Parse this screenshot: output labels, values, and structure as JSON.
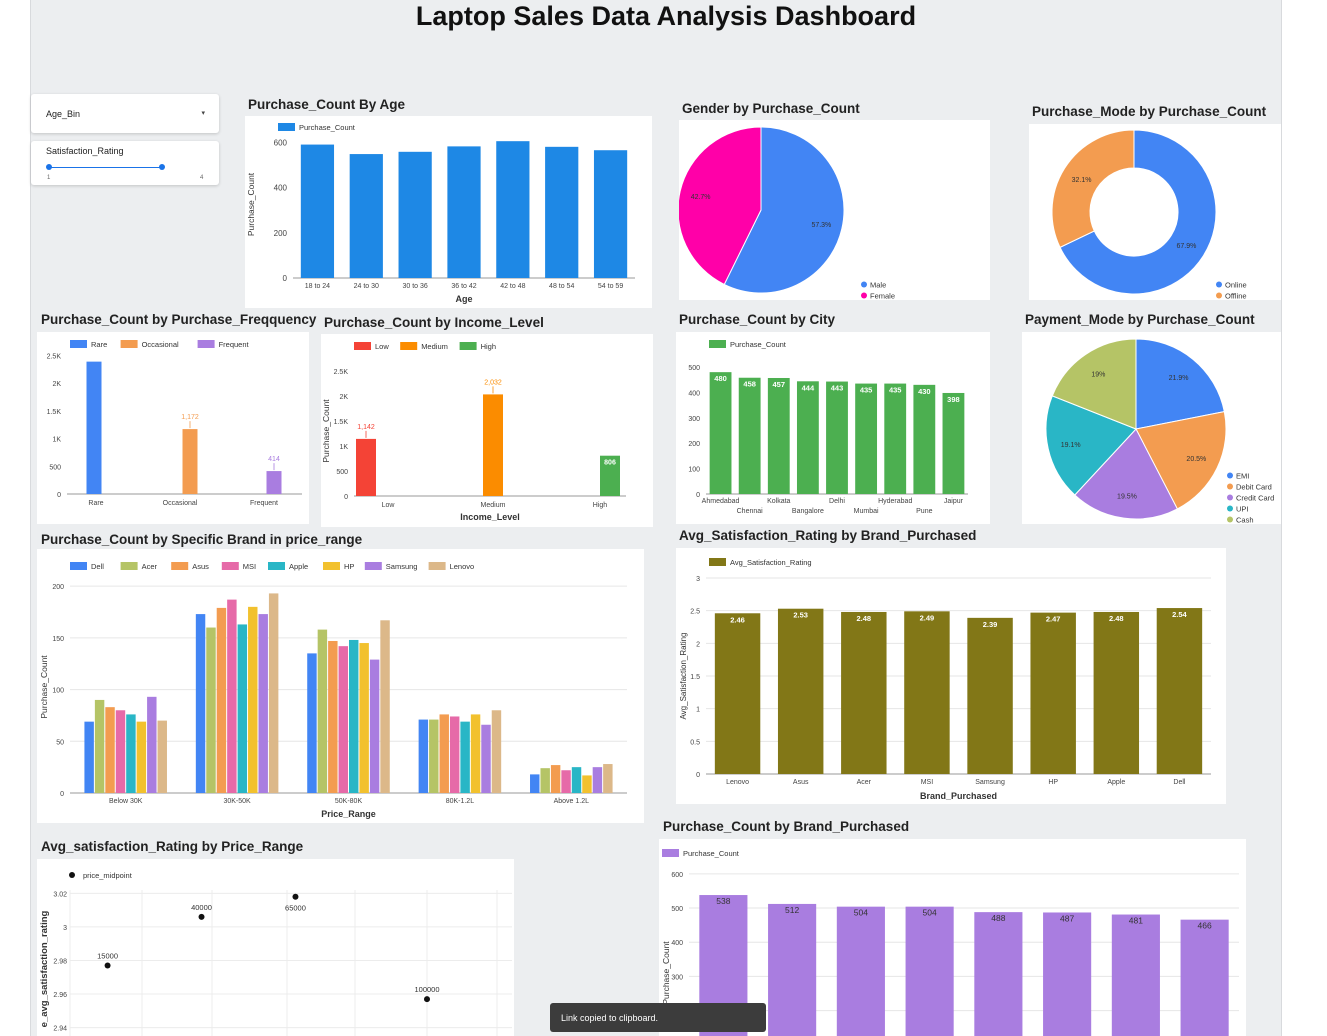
{
  "dashboard_title": "Laptop Sales Data Analysis Dashboard",
  "controls": {
    "age_bin": {
      "label": "Age_Bin"
    },
    "satisfaction": {
      "label": "Satisfaction_Rating",
      "min_label": "1",
      "max_label": "4",
      "range": [
        1,
        4
      ],
      "selected": [
        1,
        3.5
      ]
    }
  },
  "toast": "Link copied to clipboard.",
  "colors": {
    "blue": "#1e88e5",
    "green": "#4caf50",
    "olive": "#827717",
    "purple": "#a97de0",
    "pink": "#ff00a8",
    "orange": "#f39c50"
  },
  "titles": {
    "age": "Purchase_Count By Age",
    "gender": "Gender by Purchase_Count",
    "mode": "Purchase_Mode by Purchase_Count",
    "freq": "Purchase_Count by Purchase_Freqquency",
    "income": "Purchase_Count by Income_Level",
    "city": "Purchase_Count by City",
    "payment": "Payment_Mode by Purchase_Count",
    "brandprice": "Purchase_Count by Specific Brand in price_range",
    "avgsat": "Avg_Satisfaction_Rating by Brand_Purchased",
    "pricerange": "Avg_satisfaction_Rating by Price_Range",
    "brandcount": "Purchase_Count by Brand_Purchased"
  },
  "chart_data": [
    {
      "id": "age",
      "type": "bar",
      "title": "Purchase_Count By Age",
      "categories": [
        "18 to 24",
        "24 to 30",
        "30 to 36",
        "36 to 42",
        "42 to 48",
        "48 to 54",
        "54 to 59"
      ],
      "series": [
        {
          "name": "Purchase_Count",
          "values": [
            590,
            548,
            558,
            582,
            605,
            580,
            565
          ],
          "color": "#1e88e5"
        }
      ],
      "xlabel": "Age",
      "ylabel": "Purchase_Count",
      "ylim": [
        0,
        650
      ],
      "yticks": [
        0,
        200,
        400,
        600
      ],
      "ytick_labels": [
        "0",
        "200",
        "400",
        "600"
      ],
      "legend": "top-left",
      "grid": false
    },
    {
      "id": "gender",
      "type": "pie",
      "title": "Gender by Purchase_Count",
      "labels": [
        "Male",
        "Female"
      ],
      "values": [
        57.3,
        42.7
      ],
      "value_labels": [
        "57.3%",
        "42.7%"
      ],
      "colors": [
        "#4285f4",
        "#ff00a8"
      ],
      "legend": "bottom-right"
    },
    {
      "id": "mode",
      "type": "pie",
      "donut": true,
      "title": "Purchase_Mode by Purchase_Count",
      "labels": [
        "Online",
        "Offline"
      ],
      "values": [
        67.9,
        32.1
      ],
      "value_labels": [
        "67.9%",
        "32.1%"
      ],
      "colors": [
        "#4285f4",
        "#f39c50"
      ],
      "legend": "bottom-right"
    },
    {
      "id": "freq",
      "type": "bar",
      "title": "Purchase_Count by Purchase_Freqquency",
      "categories": [
        "Rare",
        "Occasional",
        "Frequent"
      ],
      "series": [
        {
          "name": "Rare",
          "values": [
            2390,
            null,
            null
          ],
          "color": "#4285f4"
        },
        {
          "name": "Occasional",
          "values": [
            null,
            1172,
            null
          ],
          "color": "#f39c50"
        },
        {
          "name": "Frequent",
          "values": [
            null,
            null,
            414
          ],
          "color": "#a97de0"
        }
      ],
      "data_labels": [
        "",
        "1,172",
        "414"
      ],
      "ylim": [
        0,
        2600
      ],
      "yticks": [
        0,
        500,
        1000,
        1500,
        2000,
        2500
      ],
      "ytick_labels": [
        "0",
        "500",
        "1K",
        "1.5K",
        "2K",
        "2.5K"
      ],
      "legend": "top-left",
      "grid": false
    },
    {
      "id": "income",
      "type": "bar",
      "title": "Purchase_Count by Income_Level",
      "categories": [
        "Low",
        "Medium",
        "High"
      ],
      "series": [
        {
          "name": "Low",
          "values": [
            1142,
            null,
            null
          ],
          "color": "#f44336"
        },
        {
          "name": "Medium",
          "values": [
            null,
            2032,
            null
          ],
          "color": "#fb8c00"
        },
        {
          "name": "High",
          "values": [
            null,
            null,
            806
          ],
          "color": "#4caf50"
        }
      ],
      "data_labels": [
        "1,142",
        "2,032",
        "806"
      ],
      "xlabel": "Income_Level",
      "ylabel": "Purchase_Count",
      "ylim": [
        0,
        2600
      ],
      "yticks": [
        0,
        500,
        1000,
        1500,
        2000,
        2500
      ],
      "ytick_labels": [
        "0",
        "500",
        "1K",
        "1.5K",
        "2K",
        "2.5K"
      ],
      "legend": "top-left",
      "grid": false
    },
    {
      "id": "city",
      "type": "bar",
      "title": "Purchase_Count by City",
      "categories": [
        "Ahmedabad",
        "Chennai",
        "Kolkata",
        "Bangalore",
        "Delhi",
        "Mumbai",
        "Hyderabad",
        "Pune",
        "Jaipur"
      ],
      "series": [
        {
          "name": "Purchase_Count",
          "values": [
            480,
            458,
            457,
            444,
            443,
            435,
            435,
            430,
            398
          ],
          "color": "#4caf50"
        }
      ],
      "ylim": [
        0,
        520
      ],
      "yticks": [
        0,
        100,
        200,
        300,
        400,
        500
      ],
      "ytick_labels": [
        "0",
        "100",
        "200",
        "300",
        "400",
        "500"
      ],
      "legend": "top-left",
      "grid": false
    },
    {
      "id": "payment",
      "type": "pie",
      "title": "Payment_Mode by Purchase_Count",
      "labels": [
        "EMI",
        "Debit Card",
        "Credit Card",
        "UPI",
        "Cash"
      ],
      "values": [
        21.9,
        20.5,
        19.5,
        19.1,
        19
      ],
      "value_labels": [
        "21.9%",
        "20.5%",
        "19.5%",
        "19.1%",
        "19%"
      ],
      "colors": [
        "#4285f4",
        "#f39c50",
        "#a97de0",
        "#29b6c6",
        "#b5c466"
      ],
      "legend": "bottom-right"
    },
    {
      "id": "brandprice",
      "type": "bar",
      "title": "Purchase_Count by Specific Brand in price_range",
      "categories": [
        "Below 30K",
        "30K-50K",
        "50K-80K",
        "80K-1.2L",
        "Above 1.2L"
      ],
      "series": [
        {
          "name": "Dell",
          "values": [
            69,
            173,
            135,
            71,
            18
          ],
          "color": "#4285f4"
        },
        {
          "name": "Acer",
          "values": [
            90,
            160,
            158,
            71,
            24
          ],
          "color": "#b5c466"
        },
        {
          "name": "Asus",
          "values": [
            83,
            179,
            147,
            76,
            27
          ],
          "color": "#f39c50"
        },
        {
          "name": "MSI",
          "values": [
            80,
            187,
            142,
            74,
            22
          ],
          "color": "#e66aa8"
        },
        {
          "name": "Apple",
          "values": [
            76,
            163,
            148,
            69,
            25
          ],
          "color": "#29b6c6"
        },
        {
          "name": "HP",
          "values": [
            69,
            180,
            145,
            76,
            17
          ],
          "color": "#f2c12e"
        },
        {
          "name": "Samsung",
          "values": [
            93,
            173,
            129,
            66,
            25
          ],
          "color": "#a97de0"
        },
        {
          "name": "Lenovo",
          "values": [
            70,
            193,
            167,
            80,
            28
          ],
          "color": "#dcb889"
        }
      ],
      "xlabel": "Price_Range",
      "ylabel": "Purchase_Count",
      "ylim": [
        0,
        205
      ],
      "yticks": [
        0,
        50,
        100,
        150,
        200
      ],
      "ytick_labels": [
        "0",
        "50",
        "100",
        "150",
        "200"
      ],
      "legend": "top-left",
      "grid": true
    },
    {
      "id": "avgsat",
      "type": "bar",
      "title": "Avg_Satisfaction_Rating by Brand_Purchased",
      "categories": [
        "Lenovo",
        "Asus",
        "Acer",
        "MSI",
        "Samsung",
        "HP",
        "Apple",
        "Dell"
      ],
      "series": [
        {
          "name": "Avg_Satisfaction_Rating",
          "values": [
            2.46,
            2.53,
            2.48,
            2.49,
            2.39,
            2.47,
            2.48,
            2.54
          ],
          "color": "#827717"
        }
      ],
      "data_labels": [
        "2.46",
        "2.53",
        "2.48",
        "2.49",
        "2.39",
        "2.47",
        "2.48",
        "2.54"
      ],
      "xlabel": "Brand_Purchased",
      "ylabel": "Avg_Satisfaction_Rating",
      "ylim": [
        0,
        3
      ],
      "yticks": [
        0,
        0.5,
        1,
        1.5,
        2,
        2.5,
        3
      ],
      "ytick_labels": [
        "0",
        "0.5",
        "1",
        "1.5",
        "2",
        "2.5",
        "3"
      ],
      "legend": "top-left",
      "grid": true
    },
    {
      "id": "pricerange",
      "type": "scatter",
      "title": "Avg_satisfaction_Rating by Price_Range",
      "series": [
        {
          "name": "price_midpoint",
          "color": "#111111",
          "points": [
            {
              "x": 15000,
              "y": 2.977,
              "label": "15000"
            },
            {
              "x": 40000,
              "y": 3.006,
              "label": "40000"
            },
            {
              "x": 65000,
              "y": 3.018,
              "label": "65000"
            },
            {
              "x": 100000,
              "y": 2.957,
              "label": "100000"
            }
          ]
        }
      ],
      "ylabel": "e_avg_satisfaction_rating",
      "ylim": [
        2.935,
        3.022
      ],
      "yticks": [
        2.94,
        2.96,
        2.98,
        3,
        3.02
      ],
      "ytick_labels": [
        "2.94",
        "2.96",
        "2.98",
        "3",
        "3.02"
      ],
      "legend": "top-left",
      "grid": true
    },
    {
      "id": "brandcount",
      "type": "bar",
      "title": "Purchase_Count by Brand_Purchased",
      "series": [
        {
          "name": "Purchase_Count",
          "values": [
            538,
            512,
            504,
            504,
            488,
            487,
            481,
            466
          ],
          "color": "#a97de0"
        }
      ],
      "data_labels": [
        "538",
        "512",
        "504",
        "504",
        "488",
        "487",
        "481",
        "466"
      ],
      "ylabel": "Purchase_Count",
      "ylim": [
        0,
        620
      ],
      "yticks": [
        200,
        300,
        400,
        500,
        600
      ],
      "ytick_labels": [
        "200",
        "300",
        "400",
        "500",
        "600"
      ],
      "legend": "top-left",
      "grid": true
    }
  ]
}
